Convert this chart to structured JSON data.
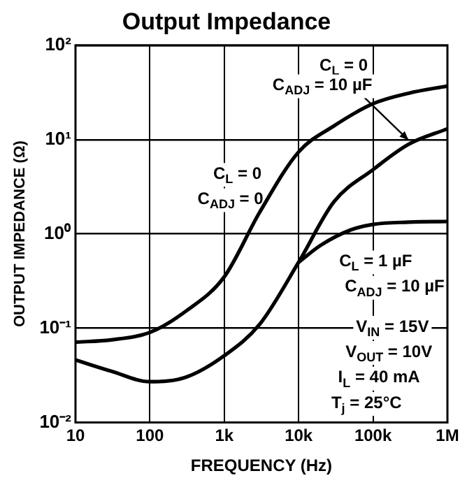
{
  "chart_data": {
    "type": "line",
    "title": "Output Impedance",
    "xlabel": "FREQUENCY (Hz)",
    "ylabel": "OUTPUT IMPEDANCE (Ω)",
    "x": [
      10,
      30,
      100,
      300,
      1000,
      3000,
      10000,
      30000,
      100000,
      300000,
      1000000
    ],
    "series": [
      {
        "color": "#000000",
        "values": [
          0.071,
          0.075,
          0.09,
          0.15,
          0.35,
          1.7,
          7.4,
          14,
          24,
          31,
          37
        ]
      },
      {
        "color": "#000000",
        "values": [
          0.046,
          0.035,
          0.027,
          0.03,
          0.051,
          0.11,
          0.5,
          2.2,
          4.8,
          8.9,
          13
        ]
      },
      {
        "color": "#000000",
        "x": [
          10000,
          20000,
          50000,
          100000,
          300000,
          1000000
        ],
        "values": [
          0.5,
          0.76,
          1.1,
          1.26,
          1.33,
          1.35
        ]
      }
    ],
    "log": "xy",
    "xlim": [
      10,
      1000000
    ],
    "ylim": [
      0.01,
      100
    ],
    "xticks": [
      10,
      100,
      {
        "value": 1000,
        "label": "1k"
      },
      {
        "value": 10000,
        "label": "10k"
      },
      {
        "value": 100000,
        "label": "100k"
      },
      {
        "value": 1000000,
        "label": "1M"
      }
    ],
    "yticks": [
      {
        "value": 0.01,
        "label": "10⁻²"
      },
      {
        "value": 0.1,
        "label": "10⁻¹"
      },
      {
        "value": 1,
        "label": "10⁰"
      },
      {
        "value": 10,
        "label": "10¹"
      },
      {
        "value": 100,
        "label": "10²"
      }
    ],
    "grid": true,
    "legend": false,
    "marker": "none",
    "line_style": "solid",
    "annotations": [
      "C$_{L}$ = 0",
      {
        "text": "C$_{ADJ}$ = 10 µF",
        "x": 300000,
        "y": 8.9
      },
      "C$_{L}$ = 0",
      "C$_{ADJ}$ = 0",
      "C$_{L}$ = 1 µF",
      "C$_{ADJ}$ = 10 µF",
      "V$_{IN}$ = 15V",
      "V$_{OUT}$ = 10V",
      "I$_{L}$ = 40 mA",
      "T$_{j}$ = 25°C"
    ]
  }
}
